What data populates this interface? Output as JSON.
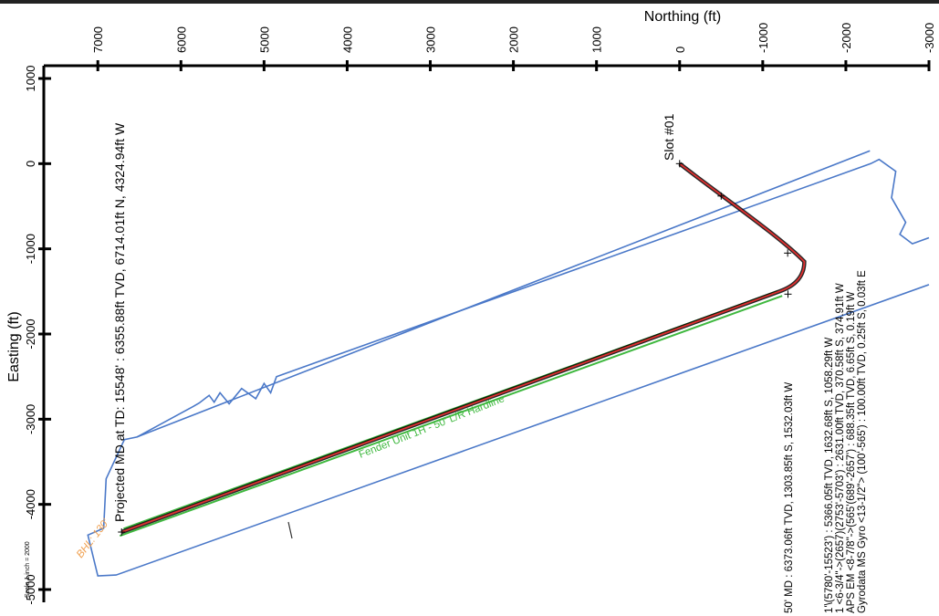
{
  "chart_data": {
    "type": "line",
    "xlabel": "Northing (ft)",
    "ylabel": "Easting (ft)",
    "x_ticks": [
      7000,
      6000,
      5000,
      4000,
      3000,
      2000,
      1000,
      0,
      -1000,
      -2000,
      -3000
    ],
    "x_tick_labels": [
      "7000",
      "6000",
      "5000",
      "4000",
      "3000",
      "2000",
      "1000",
      "0",
      "-1000",
      "-2000",
      "-3000"
    ],
    "y_ticks": [
      1000,
      0,
      -1000,
      -2000,
      -3000,
      -4000,
      -5000
    ],
    "y_tick_labels": [
      "1000",
      "0",
      "-1000",
      "-2000",
      "-3000",
      "-4000",
      "-5000"
    ],
    "xlim": [
      7650,
      -3000
    ],
    "ylim": [
      1150,
      -5150
    ],
    "colors": {
      "well_path": "#e03030",
      "hardline": "#3fb83f",
      "lease_boundary": "#4a78c8",
      "bhl_label": "#f0a050",
      "well_path_shadow": "#000000"
    },
    "series": [
      {
        "name": "Slot #01",
        "points": [
          [
            0,
            0
          ],
          [
            -500,
            -380
          ],
          [
            -1200,
            -850
          ],
          [
            -1500,
            -1150
          ],
          [
            -1200,
            -1500
          ],
          [
            6714.01,
            -4324.94
          ]
        ]
      },
      {
        "name": "Fender Unit 1H - 50' L/R Hardline",
        "left": [
          [
            -1180,
            -1495
          ],
          [
            6690,
            -4285
          ]
        ],
        "right": [
          [
            -1235,
            -1552
          ],
          [
            6735,
            -4370
          ]
        ]
      },
      {
        "name": "lease",
        "points": [
          [
            -2290,
            150
          ],
          [
            6530,
            -3210
          ],
          [
            6680,
            -3240
          ],
          [
            6900,
            -3700
          ],
          [
            6930,
            -4280
          ],
          [
            7120,
            -4360
          ],
          [
            7000,
            -4840
          ],
          [
            6780,
            -4830
          ],
          [
            -3000,
            -1420
          ]
        ]
      },
      {
        "name": "lease_upper",
        "points": [
          [
            6530,
            -3210
          ],
          [
            5850,
            -2850
          ],
          [
            5780,
            -2810
          ],
          [
            5660,
            -2720
          ],
          [
            5600,
            -2800
          ],
          [
            5530,
            -2690
          ],
          [
            5420,
            -2820
          ],
          [
            5270,
            -2640
          ],
          [
            5100,
            -2760
          ],
          [
            5000,
            -2580
          ],
          [
            4920,
            -2690
          ],
          [
            4850,
            -2500
          ],
          [
            -2300,
            0
          ],
          [
            -2400,
            50
          ],
          [
            -2600,
            -90
          ],
          [
            -2550,
            -400
          ],
          [
            -2720,
            -690
          ],
          [
            -2650,
            -830
          ],
          [
            -2800,
            -940
          ],
          [
            -3000,
            -870
          ]
        ]
      }
    ],
    "markers": [
      {
        "name": "slot",
        "point": [
          0,
          0
        ]
      },
      {
        "name": "survey_1",
        "point": [
          -500,
          -380
        ]
      },
      {
        "name": "survey_2",
        "point": [
          -1300,
          -1050
        ]
      },
      {
        "name": "landing",
        "point": [
          -1303.85,
          -1532.03
        ]
      },
      {
        "name": "td",
        "point": [
          6714.01,
          -4324.94
        ]
      }
    ],
    "annotations": {
      "slot_label": "Slot #01",
      "td_label": "Projected MD at TD: 15548' : 6355.88ft TVD, 6714.01ft N, 4324.94ft W",
      "landing_label": "50' MD : 6373.06ft TVD, 1303.85ft S, 1532.03ft W",
      "hardline_label": "Fender Unit 1H - 50' L/R Hardline",
      "bhl_label": "BHL: 130'",
      "scale_label": "Scale 1 inch = 2000",
      "survey_lines": [
        "1'\\(5780'-15523') : 5366.05ft TVD, 1632.68ft S, 1058.29ft W",
        "1 <6-3/4\"->(2657)(2753'-5703') : 2631.00ft TVD, 370.58ft S, 374.91ft W",
        "APS EM <8-7/8\"->(565'(689'-2657') : 688.35ft TVD, 6.65ft S, 0.19ft W",
        "Gyrodata MS Gyro <13-1/2\"> (100'-565') : 100.00ft TVD, 0.25ft S, 0.03ft E"
      ]
    }
  }
}
